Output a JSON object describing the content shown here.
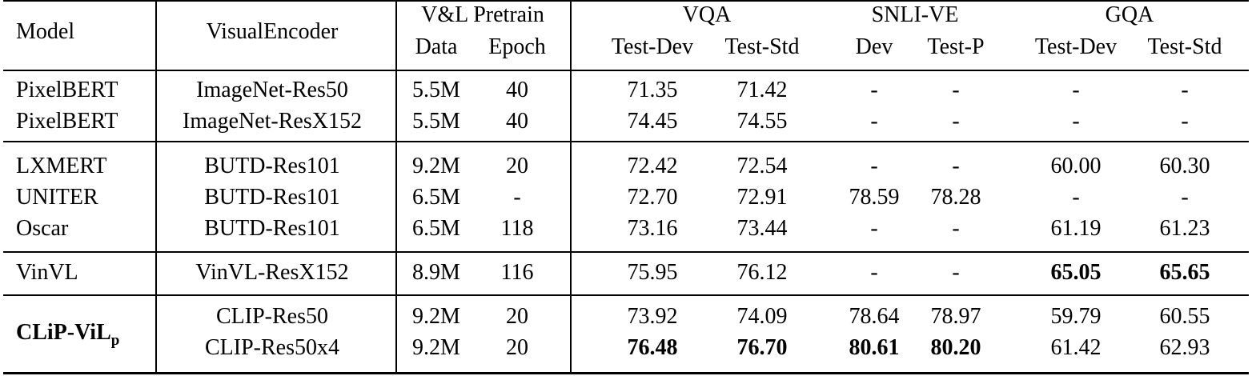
{
  "header": {
    "model": "Model",
    "visual_encoder": "VisualEncoder",
    "pretrain": "V&L Pretrain",
    "pretrain_data": "Data",
    "pretrain_epoch": "Epoch",
    "vqa": "VQA",
    "vqa_testdev": "Test-Dev",
    "vqa_teststd": "Test-Std",
    "snli": "SNLI-VE",
    "snli_dev": "Dev",
    "snli_testp": "Test-P",
    "gqa": "GQA",
    "gqa_testdev": "Test-Dev",
    "gqa_teststd": "Test-Std"
  },
  "rows": [
    {
      "model": "PixelBERT",
      "encoder": "ImageNet-Res50",
      "data": "5.5M",
      "epoch": "40",
      "vqa_dev": "71.35",
      "vqa_std": "71.42",
      "snli_dev": "-",
      "snli_test": "-",
      "gqa_dev": "-",
      "gqa_std": "-"
    },
    {
      "model": "PixelBERT",
      "encoder": "ImageNet-ResX152",
      "data": "5.5M",
      "epoch": "40",
      "vqa_dev": "74.45",
      "vqa_std": "74.55",
      "snli_dev": "-",
      "snli_test": "-",
      "gqa_dev": "-",
      "gqa_std": "-"
    },
    {
      "model": "LXMERT",
      "encoder": "BUTD-Res101",
      "data": "9.2M",
      "epoch": "20",
      "vqa_dev": "72.42",
      "vqa_std": "72.54",
      "snli_dev": "-",
      "snli_test": "-",
      "gqa_dev": "60.00",
      "gqa_std": "60.30"
    },
    {
      "model": "UNITER",
      "encoder": "BUTD-Res101",
      "data": "6.5M",
      "epoch": "-",
      "vqa_dev": "72.70",
      "vqa_std": "72.91",
      "snli_dev": "78.59",
      "snli_test": "78.28",
      "gqa_dev": "-",
      "gqa_std": "-"
    },
    {
      "model": "Oscar",
      "encoder": "BUTD-Res101",
      "data": "6.5M",
      "epoch": "118",
      "vqa_dev": "73.16",
      "vqa_std": "73.44",
      "snli_dev": "-",
      "snli_test": "-",
      "gqa_dev": "61.19",
      "gqa_std": "61.23"
    },
    {
      "model": "VinVL",
      "encoder": "VinVL-ResX152",
      "data": "8.9M",
      "epoch": "116",
      "vqa_dev": "75.95",
      "vqa_std": "76.12",
      "snli_dev": "-",
      "snli_test": "-",
      "gqa_dev": "65.05",
      "gqa_std": "65.65"
    },
    {
      "model": "",
      "encoder": "CLIP-Res50",
      "data": "9.2M",
      "epoch": "20",
      "vqa_dev": "73.92",
      "vqa_std": "74.09",
      "snli_dev": "78.64",
      "snli_test": "78.97",
      "gqa_dev": "59.79",
      "gqa_std": "60.55"
    },
    {
      "model": "",
      "encoder": "CLIP-Res50x4",
      "data": "9.2M",
      "epoch": "20",
      "vqa_dev": "76.48",
      "vqa_std": "76.70",
      "snli_dev": "80.61",
      "snli_test": "80.20",
      "gqa_dev": "61.42",
      "gqa_std": "62.93"
    }
  ],
  "clip_model": {
    "name": "CLiP-ViL",
    "subscript": "p"
  }
}
